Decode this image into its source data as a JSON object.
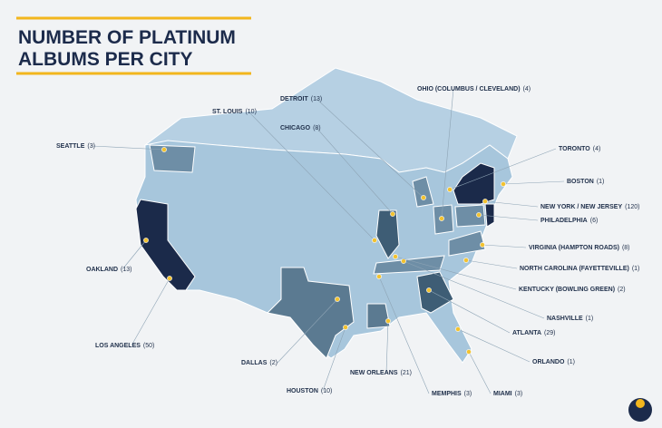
{
  "header": {
    "title_lines": [
      "NUMBER OF PLATINUM",
      "ALBUMS PER CITY"
    ]
  },
  "cities": [
    {
      "name": "SEATTLE",
      "count": "(3)"
    },
    {
      "name": "OAKLAND",
      "count": "(13)"
    },
    {
      "name": "LOS ANGELES",
      "count": "(50)"
    },
    {
      "name": "DALLAS",
      "count": "(2)"
    },
    {
      "name": "HOUSTON",
      "count": "(10)"
    },
    {
      "name": "NEW ORLEANS",
      "count": "(21)"
    },
    {
      "name": "MEMPHIS",
      "count": "(3)"
    },
    {
      "name": "MIAMI",
      "count": "(3)"
    },
    {
      "name": "ORLANDO",
      "count": "(1)"
    },
    {
      "name": "ATLANTA",
      "count": "(29)"
    },
    {
      "name": "NASHVILLE",
      "count": "(1)"
    },
    {
      "name": "KENTUCKY (BOWLING GREEN)",
      "count": "(2)"
    },
    {
      "name": "NORTH CAROLINA (FAYETTEVILLE)",
      "count": "(1)"
    },
    {
      "name": "VIRGINIA (HAMPTON ROADS)",
      "count": "(8)"
    },
    {
      "name": "PHILADELPHIA",
      "count": "(6)"
    },
    {
      "name": "NEW YORK / NEW JERSEY",
      "count": "(120)"
    },
    {
      "name": "BOSTON",
      "count": "(1)"
    },
    {
      "name": "TORONTO",
      "count": "(4)"
    },
    {
      "name": "OHIO (COLUMBUS / CLEVELAND)",
      "count": "(4)"
    },
    {
      "name": "DETROIT",
      "count": "(13)"
    },
    {
      "name": "CHICAGO",
      "count": "(8)"
    },
    {
      "name": "ST. LOUIS",
      "count": "(10)"
    }
  ]
}
